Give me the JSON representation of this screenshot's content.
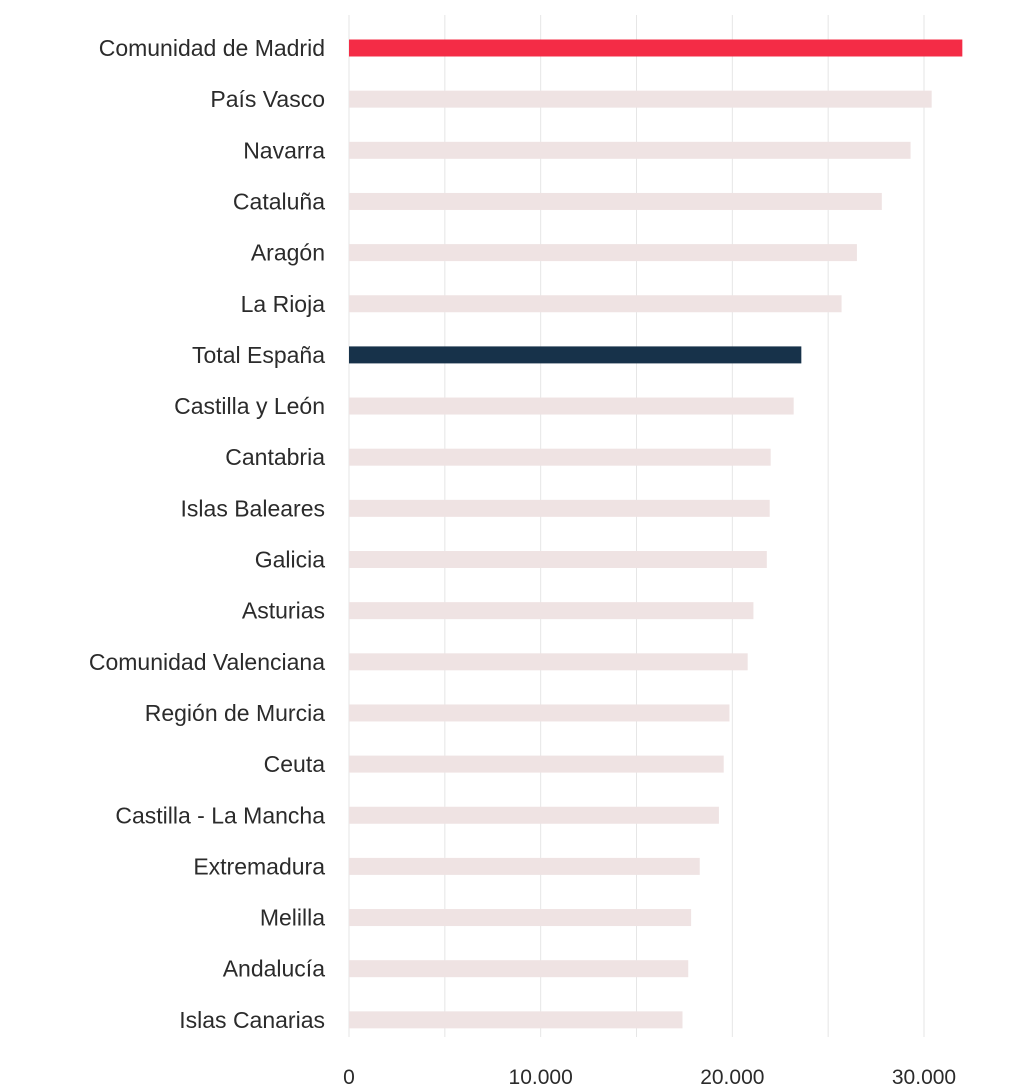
{
  "chart_data": {
    "type": "bar",
    "orientation": "horizontal",
    "title": "",
    "xlabel": "",
    "ylabel": "",
    "xlim": [
      0,
      33000
    ],
    "grid": true,
    "categories": [
      "Comunidad de Madrid",
      "País Vasco",
      "Navarra",
      "Cataluña",
      "Aragón",
      "La Rioja",
      "Total España",
      "Castilla y León",
      "Cantabria",
      "Islas Baleares",
      "Galicia",
      "Asturias",
      "Comunidad Valenciana",
      "Región de Murcia",
      "Ceuta",
      "Castilla - La Mancha",
      "Extremadura",
      "Melilla",
      "Andalucía",
      "Islas Canarias"
    ],
    "values": [
      32000,
      30400,
      29300,
      27800,
      26500,
      25700,
      23600,
      23200,
      22000,
      21950,
      21800,
      21100,
      20800,
      19850,
      19550,
      19300,
      18300,
      17850,
      17700,
      17400
    ],
    "tick_values": [
      0,
      10000,
      20000,
      30000
    ],
    "tick_labels": [
      "0",
      "10.000",
      "20.000",
      "30.000"
    ],
    "colors": {
      "default": "#efe3e3",
      "highlight_primary": "#f42c46",
      "highlight_secondary": "#17324a"
    },
    "highlights": {
      "Comunidad de Madrid": "highlight_primary",
      "Total España": "highlight_secondary"
    }
  }
}
